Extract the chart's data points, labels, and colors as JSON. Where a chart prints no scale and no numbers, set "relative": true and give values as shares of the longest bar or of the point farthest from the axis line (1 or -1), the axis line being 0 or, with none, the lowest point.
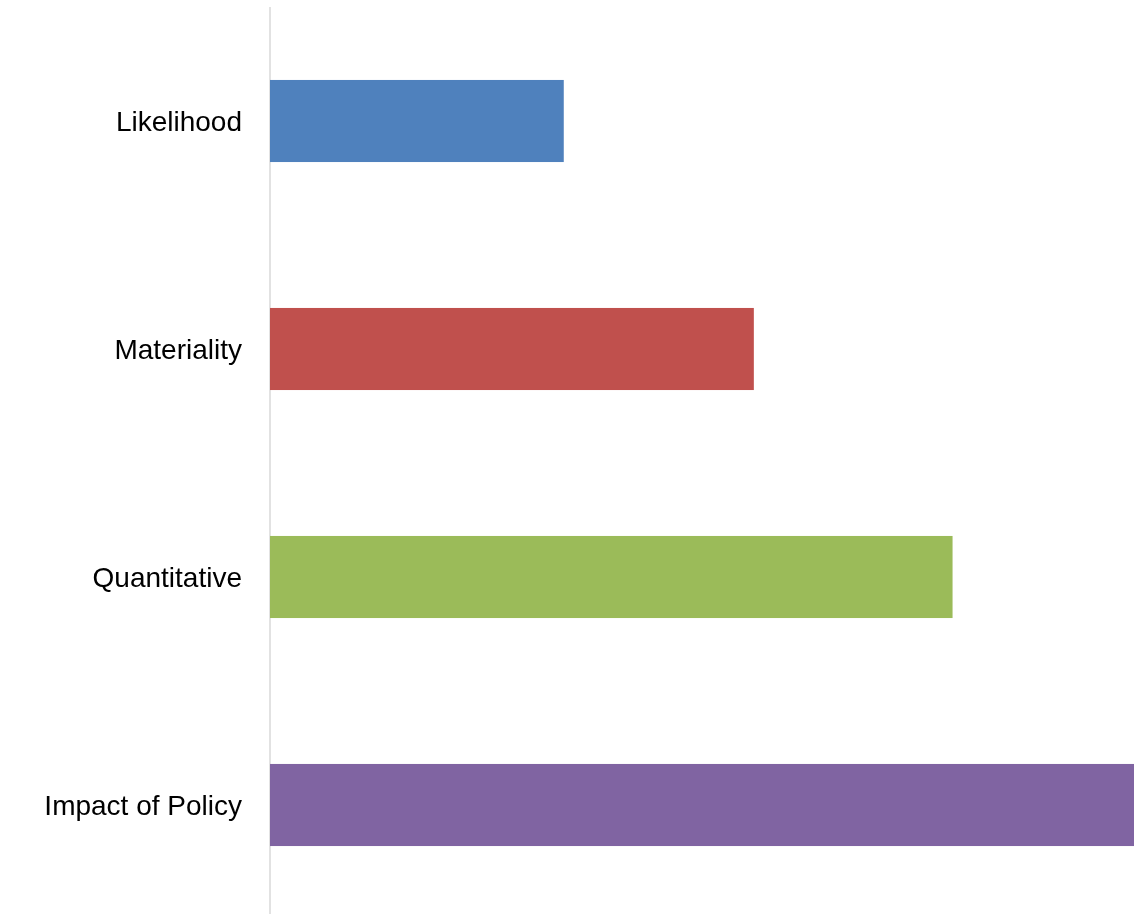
{
  "chart_data": {
    "type": "bar",
    "orientation": "horizontal",
    "relative": true,
    "categories": [
      "Likelihood",
      "Materiality",
      "Quantitative",
      "Impact of Policy"
    ],
    "values": [
      0.34,
      0.56,
      0.79,
      1
    ],
    "colors": [
      "#4f81bd",
      "#c0504d",
      "#9bbb59",
      "#8064a2"
    ]
  }
}
